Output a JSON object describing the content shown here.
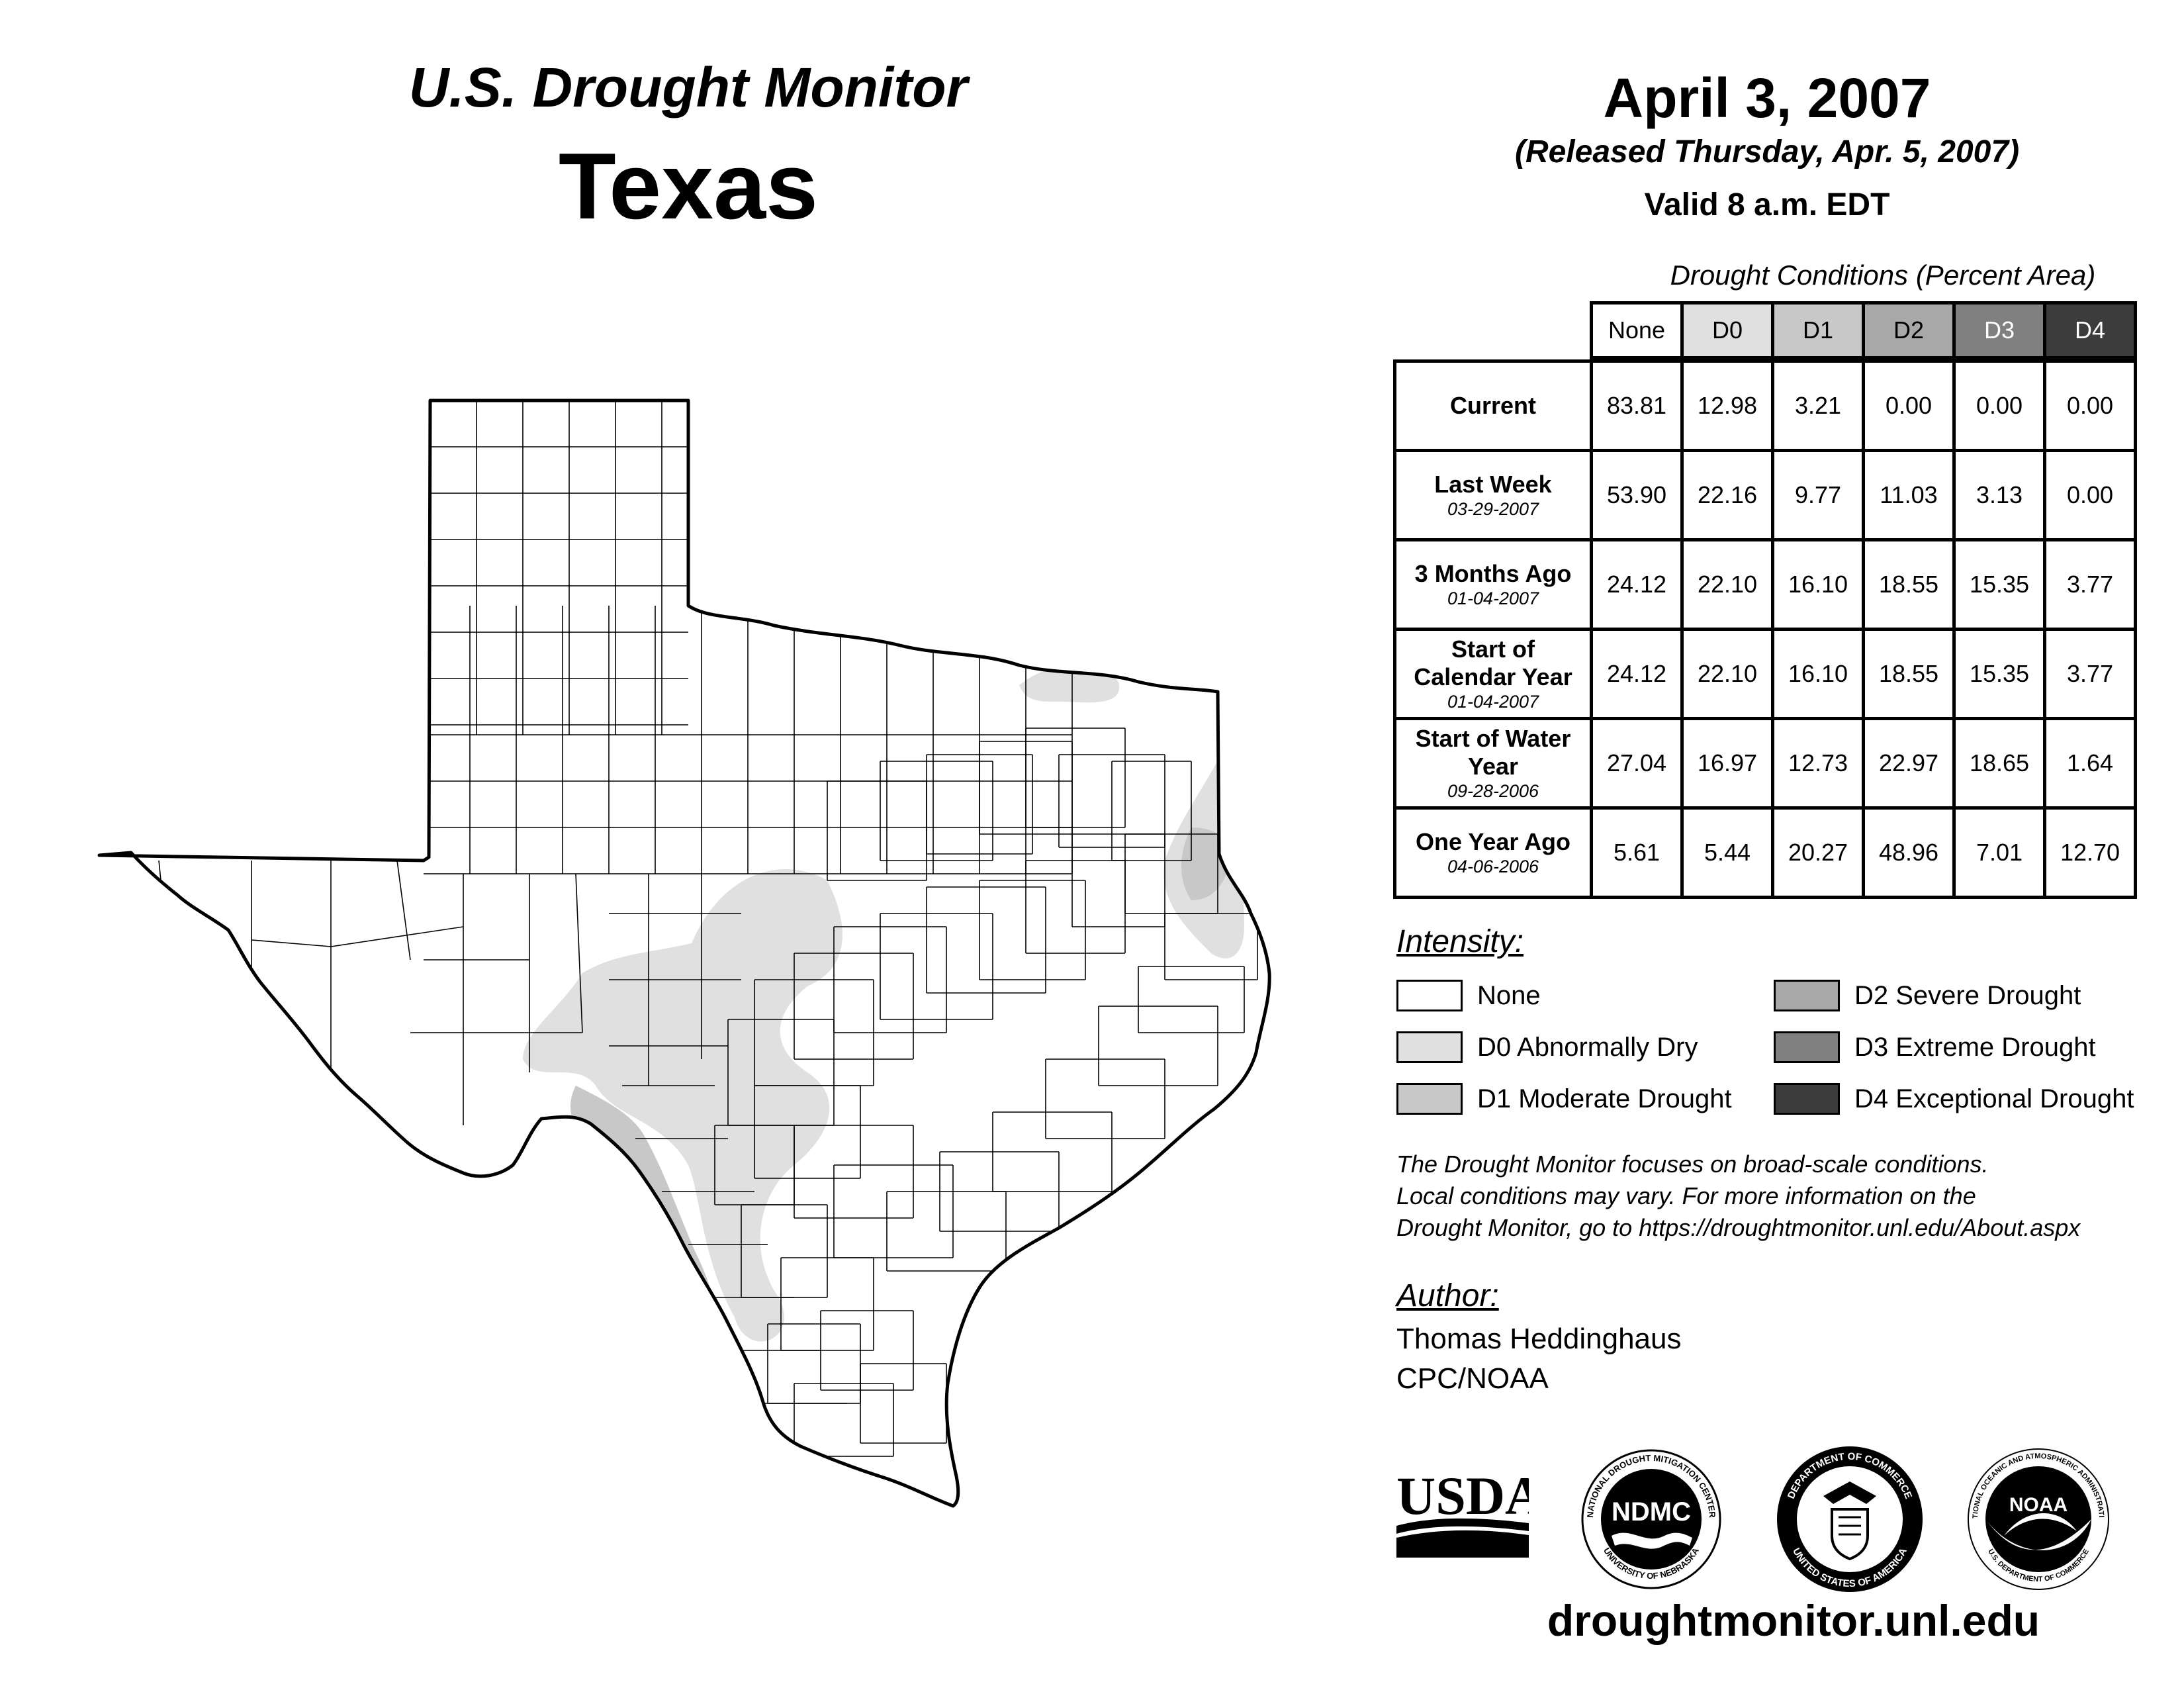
{
  "header": {
    "monitor_title": "U.S. Drought Monitor",
    "state": "Texas",
    "date": "April 3, 2007",
    "released": "(Released Thursday, Apr. 5, 2007)",
    "valid": "Valid 8 a.m. EDT"
  },
  "table": {
    "caption": "Drought Conditions (Percent Area)",
    "columns": [
      "None",
      "D0",
      "D1",
      "D2",
      "D3",
      "D4"
    ],
    "column_colors": [
      "#ffffff",
      "#e0e0e0",
      "#c8c8c8",
      "#a8a8a8",
      "#808080",
      "#3c3c3c"
    ],
    "column_text_colors": [
      "#000000",
      "#000000",
      "#000000",
      "#000000",
      "#ffffff",
      "#ffffff"
    ],
    "rows": [
      {
        "label": "Current",
        "date": "",
        "values": [
          "83.81",
          "12.98",
          "3.21",
          "0.00",
          "0.00",
          "0.00"
        ]
      },
      {
        "label": "Last Week",
        "date": "03-29-2007",
        "values": [
          "53.90",
          "22.16",
          "9.77",
          "11.03",
          "3.13",
          "0.00"
        ]
      },
      {
        "label": "3 Months Ago",
        "date": "01-04-2007",
        "values": [
          "24.12",
          "22.10",
          "16.10",
          "18.55",
          "15.35",
          "3.77"
        ]
      },
      {
        "label": "Start of Calendar Year",
        "date": "01-04-2007",
        "values": [
          "24.12",
          "22.10",
          "16.10",
          "18.55",
          "15.35",
          "3.77"
        ]
      },
      {
        "label": "Start of Water Year",
        "date": "09-28-2006",
        "values": [
          "27.04",
          "16.97",
          "12.73",
          "22.97",
          "18.65",
          "1.64"
        ]
      },
      {
        "label": "One Year Ago",
        "date": "04-06-2006",
        "values": [
          "5.61",
          "5.44",
          "20.27",
          "48.96",
          "7.01",
          "12.70"
        ]
      }
    ]
  },
  "legend": {
    "title": "Intensity:",
    "items": [
      {
        "label": "None",
        "color": "#ffffff"
      },
      {
        "label": "D0 Abnormally Dry",
        "color": "#e0e0e0"
      },
      {
        "label": "D1 Moderate Drought",
        "color": "#c8c8c8"
      },
      {
        "label": "D2 Severe Drought",
        "color": "#a8a8a8"
      },
      {
        "label": "D3 Extreme Drought",
        "color": "#808080"
      },
      {
        "label": "D4 Exceptional Drought",
        "color": "#3c3c3c"
      }
    ]
  },
  "disclaimer": {
    "line1": "The Drought Monitor focuses on broad-scale conditions.",
    "line2": "Local conditions may vary. For more information on the",
    "line3": "Drought Monitor, go to https://droughtmonitor.unl.edu/About.aspx"
  },
  "author": {
    "title": "Author:",
    "name": "Thomas Heddinghaus",
    "org": "CPC/NOAA"
  },
  "logos": {
    "usda": "USDA",
    "ndmc": "NDMC",
    "ndmc_top": "NATIONAL DROUGHT MITIGATION CENTER",
    "ndmc_bottom": "UNIVERSITY OF NEBRASKA",
    "doc_top": "DEPARTMENT OF COMMERCE",
    "doc_bottom": "UNITED STATES OF AMERICA",
    "noaa": "NOAA",
    "noaa_top": "NATIONAL OCEANIC AND ATMOSPHERIC ADMINISTRATION",
    "noaa_bottom": "U.S. DEPARTMENT OF COMMERCE"
  },
  "website": "droughtmonitor.unl.edu",
  "map": {
    "outline_color": "#000000",
    "d0_color": "#e0e0e0",
    "d1_color": "#c8c8c8"
  }
}
